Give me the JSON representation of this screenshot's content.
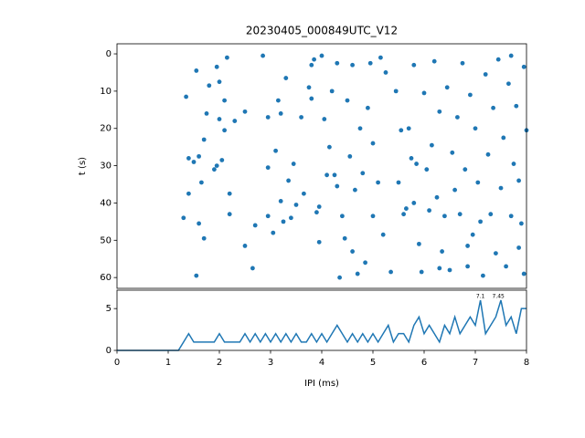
{
  "chart_data": [
    {
      "type": "scatter",
      "title": "20230405_000849UTC_V12",
      "ylabel": "t (s)",
      "color": "#1f77b4",
      "x": [
        1.35,
        1.4,
        1.4,
        1.3,
        1.5,
        1.55,
        1.55,
        1.6,
        1.6,
        1.65,
        1.7,
        1.7,
        1.75,
        1.8,
        1.9,
        1.95,
        1.95,
        2.0,
        2.0,
        2.05,
        2.1,
        2.1,
        2.15,
        2.2,
        2.2,
        2.3,
        2.5,
        2.5,
        2.65,
        2.7,
        2.85,
        2.95,
        2.95,
        2.95,
        3.05,
        3.1,
        3.15,
        3.2,
        3.2,
        3.25,
        3.3,
        3.35,
        3.4,
        3.45,
        3.5,
        3.6,
        3.65,
        3.75,
        3.8,
        3.8,
        3.85,
        3.9,
        3.95,
        3.95,
        4.0,
        4.05,
        4.1,
        4.15,
        4.2,
        4.25,
        4.3,
        4.3,
        4.35,
        4.4,
        4.45,
        4.5,
        4.55,
        4.6,
        4.6,
        4.65,
        4.7,
        4.75,
        4.8,
        4.85,
        4.9,
        4.95,
        5.0,
        5.0,
        5.1,
        5.15,
        5.2,
        5.25,
        5.35,
        5.45,
        5.5,
        5.55,
        5.6,
        5.65,
        5.7,
        5.75,
        5.8,
        5.85,
        5.9,
        5.95,
        6.0,
        6.05,
        6.1,
        6.15,
        6.2,
        6.25,
        6.3,
        6.35,
        6.4,
        6.45,
        6.5,
        6.55,
        6.6,
        6.65,
        6.7,
        6.75,
        6.8,
        6.85,
        6.9,
        6.95,
        7.0,
        7.05,
        7.1,
        7.15,
        7.2,
        7.25,
        7.3,
        7.35,
        7.4,
        7.45,
        7.5,
        7.55,
        7.6,
        7.65,
        7.7,
        7.75,
        7.8,
        7.85,
        7.9,
        7.95,
        8.0,
        7.95,
        7.85,
        7.7,
        6.85,
        6.3,
        5.8
      ],
      "y": [
        11.5,
        28,
        37.5,
        44,
        29,
        4.5,
        59.5,
        27.5,
        45.5,
        34.5,
        49.5,
        23,
        16,
        8.5,
        31,
        30,
        3.5,
        7.5,
        17.5,
        28.5,
        12.5,
        20.5,
        1,
        37.5,
        43,
        18,
        15.5,
        51.5,
        57.5,
        46,
        0.5,
        30.5,
        17,
        43.5,
        48,
        26,
        12.5,
        39.5,
        16,
        45,
        6.5,
        34,
        44,
        29.5,
        40.5,
        17,
        37.5,
        9,
        12,
        3,
        1.5,
        42.5,
        41,
        50.5,
        0.5,
        17.5,
        32.5,
        25,
        10,
        32.5,
        2.5,
        35.5,
        60,
        43.5,
        49.5,
        12.5,
        27.5,
        3,
        53,
        36.5,
        59,
        20,
        32,
        56,
        14.5,
        2.5,
        43.5,
        24,
        34.5,
        1,
        48.5,
        5,
        58.5,
        10,
        34.5,
        20.5,
        43,
        41.5,
        20,
        28,
        3,
        29.5,
        51,
        58.5,
        10.5,
        31,
        42,
        24.5,
        2,
        38.5,
        15.5,
        53,
        43.5,
        9,
        58,
        26.5,
        36.5,
        17,
        43,
        2.5,
        31,
        57,
        11,
        48.5,
        20,
        34.5,
        45,
        59.5,
        5.5,
        27,
        43,
        14.5,
        53.5,
        1.5,
        36,
        22.5,
        57,
        8,
        43.5,
        29.5,
        14,
        52,
        45.5,
        3.5,
        20.5,
        59,
        34,
        0.5,
        51.5,
        57.5,
        40
      ],
      "xlim": [
        0,
        8
      ],
      "ylim": [
        -2.7,
        62.9
      ],
      "y_inverted": true,
      "yticks": [
        0,
        10,
        20,
        30,
        40,
        50,
        60
      ]
    },
    {
      "type": "line",
      "xlabel": "IPI (ms)",
      "color": "#1f77b4",
      "x": [
        0,
        0.1,
        0.2,
        0.3,
        0.4,
        0.5,
        0.6,
        0.7,
        0.8,
        0.9,
        1.0,
        1.1,
        1.2,
        1.3,
        1.4,
        1.5,
        1.6,
        1.7,
        1.8,
        1.9,
        2.0,
        2.1,
        2.2,
        2.3,
        2.4,
        2.5,
        2.6,
        2.7,
        2.8,
        2.9,
        3.0,
        3.1,
        3.2,
        3.3,
        3.4,
        3.5,
        3.6,
        3.7,
        3.8,
        3.9,
        4.0,
        4.1,
        4.2,
        4.3,
        4.4,
        4.5,
        4.6,
        4.7,
        4.8,
        4.9,
        5.0,
        5.1,
        5.2,
        5.3,
        5.4,
        5.5,
        5.6,
        5.7,
        5.8,
        5.9,
        6.0,
        6.1,
        6.2,
        6.3,
        6.4,
        6.5,
        6.6,
        6.7,
        6.8,
        6.9,
        7.0,
        7.1,
        7.2,
        7.3,
        7.4,
        7.5,
        7.6,
        7.7,
        7.8,
        7.9,
        8.0
      ],
      "values": [
        0,
        0,
        0,
        0,
        0,
        0,
        0,
        0,
        0,
        0,
        0,
        0,
        0,
        1,
        2,
        1,
        1,
        1,
        1,
        1,
        2,
        1,
        1,
        1,
        1,
        2,
        1,
        2,
        1,
        2,
        1,
        2,
        1,
        2,
        1,
        2,
        1,
        1,
        2,
        1,
        2,
        1,
        2,
        3,
        2,
        1,
        2,
        1,
        2,
        1,
        2,
        1,
        2,
        3,
        1,
        2,
        2,
        1,
        3,
        4,
        2,
        3,
        2,
        1,
        3,
        2,
        4,
        2,
        3,
        4,
        3,
        6,
        2,
        3,
        4,
        6,
        3,
        4,
        2,
        5,
        5
      ],
      "xlim": [
        0,
        8
      ],
      "ylim": [
        0,
        7.2
      ],
      "xticks": [
        0,
        1,
        2,
        3,
        4,
        5,
        6,
        7,
        8
      ],
      "yticks": [
        0,
        5
      ],
      "annotations": [
        {
          "x": 7.1,
          "y": 6
        },
        {
          "x": 7.45,
          "y": 6
        }
      ]
    }
  ]
}
